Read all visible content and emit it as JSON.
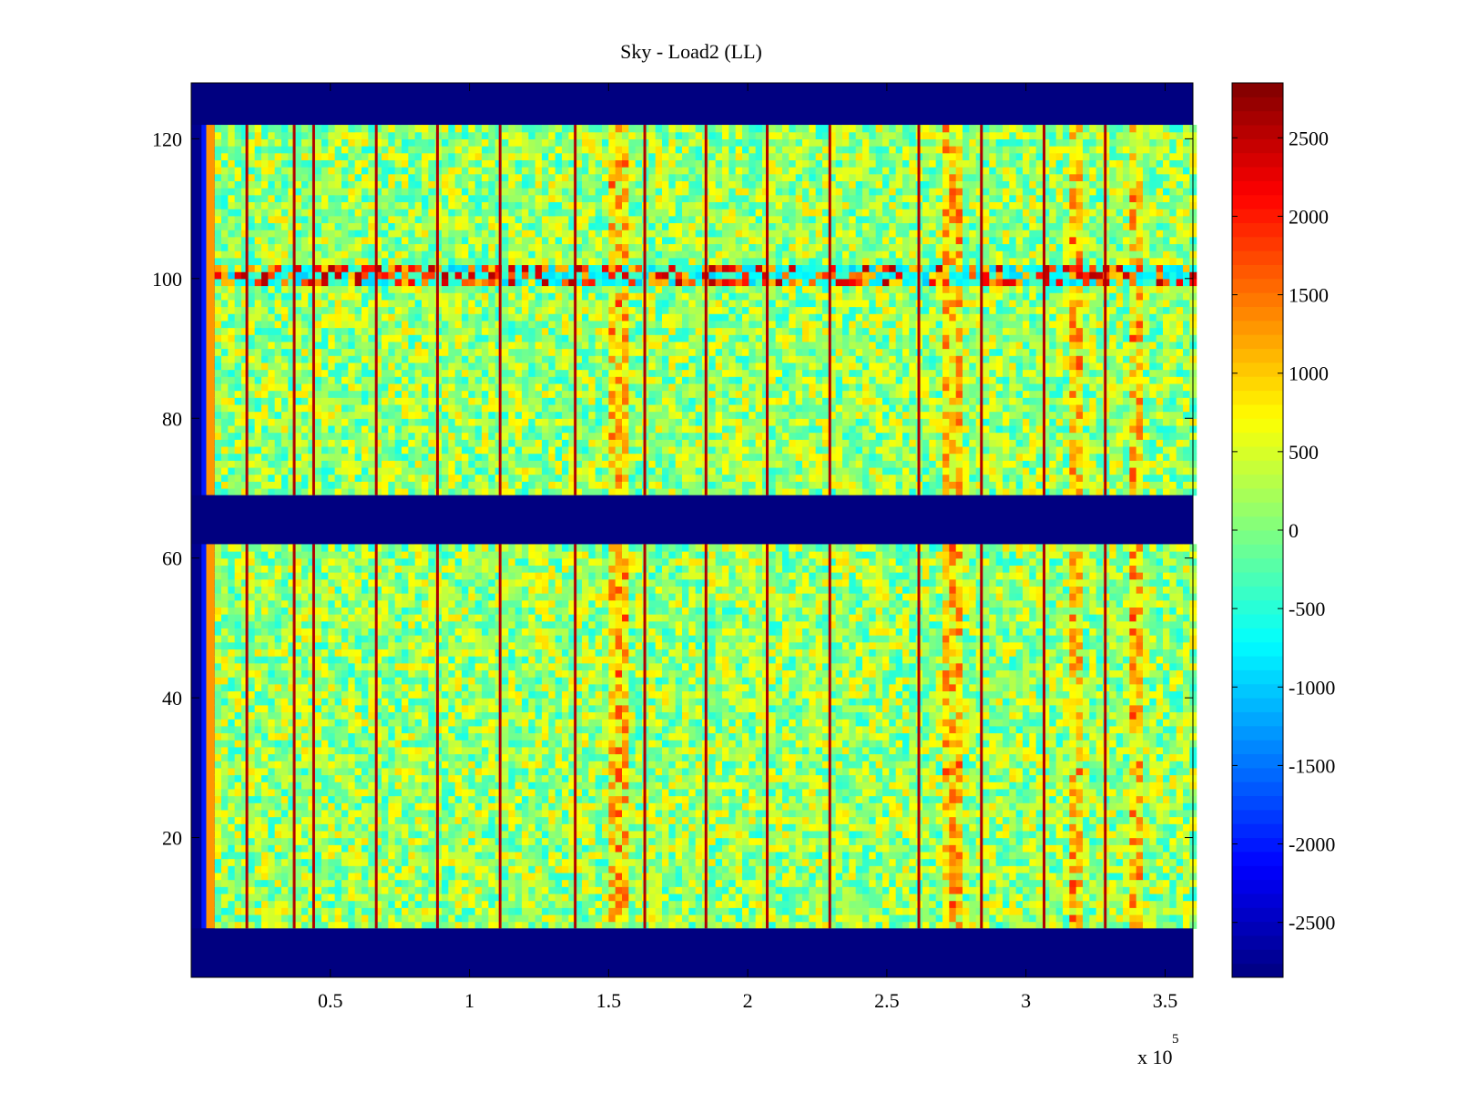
{
  "chart_data": {
    "type": "heatmap",
    "title": "Sky - Load2 (LL)",
    "xlabel": "",
    "ylabel": "",
    "x_multiplier_label": "x 10",
    "x_multiplier_exponent": "5",
    "xlim": [
      0,
      360000
    ],
    "ylim": [
      0,
      128
    ],
    "x_ticks": [
      50000,
      100000,
      150000,
      200000,
      250000,
      300000,
      350000
    ],
    "x_tick_labels": [
      "0.5",
      "1",
      "1.5",
      "2",
      "2.5",
      "3",
      "3.5"
    ],
    "y_ticks": [
      20,
      40,
      60,
      80,
      100,
      120
    ],
    "y_tick_labels": [
      "20",
      "40",
      "60",
      "80",
      "100",
      "120"
    ],
    "colormap": "jet",
    "clim": [
      -2850,
      2850
    ],
    "colorbar_ticks": [
      2500,
      2000,
      1500,
      1000,
      500,
      0,
      -500,
      -1000,
      -1500,
      -2000,
      -2500
    ],
    "colorbar_tick_labels": [
      "2500",
      "2000",
      "1500",
      "1000",
      "500",
      "0",
      "-500",
      "-1000",
      "-1500",
      "-2000",
      "-2500"
    ],
    "masked_rows": [
      [
        0,
        7
      ],
      [
        62,
        69
      ],
      [
        122,
        128
      ]
    ],
    "masked_value": -2850,
    "background_value": 150,
    "left_edge_columns": [
      {
        "x_range": [
          3700,
          5400
        ],
        "value": -2000
      },
      {
        "x_range": [
          5400,
          8400
        ],
        "value": 1300
      }
    ],
    "hot_vertical_stripes_x": [
      20000,
      37000,
      44000,
      66500,
      88500,
      111000,
      138000,
      163000,
      185000,
      207000,
      229500,
      261500,
      284000,
      306500,
      328500
    ],
    "warm_bands_x": [
      [
        148000,
        155000
      ],
      [
        270000,
        276000
      ],
      [
        315000,
        320000
      ],
      [
        336000,
        340000
      ]
    ],
    "anomalous_rows": [
      {
        "y_range": [
          99,
          102
        ],
        "description_values": [
          -1000,
          2600
        ]
      }
    ],
    "colors": {
      "mask": "#00008f",
      "axis": "#000000",
      "background": "#ffffff"
    }
  }
}
